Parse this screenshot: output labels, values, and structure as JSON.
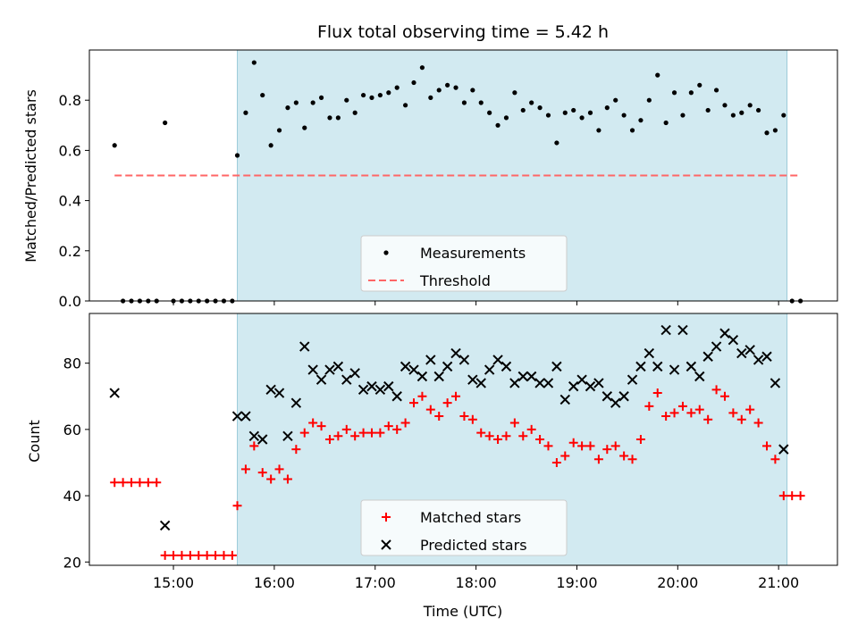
{
  "chart_data": [
    {
      "type": "scatter",
      "title": "Flux total observing time = 5.42 h",
      "xlabel": "",
      "ylabel": "Matched/Predicted stars",
      "ylim": [
        0,
        1.0
      ],
      "yticks": [
        0.0,
        0.2,
        0.4,
        0.6,
        0.8
      ],
      "ytick_labels": [
        "0.0",
        "0.2",
        "0.4",
        "0.6",
        "0.8"
      ],
      "xlim": [
        "14:10",
        "21:35"
      ],
      "xticks": [
        "15:00",
        "16:00",
        "17:00",
        "18:00",
        "19:00",
        "20:00",
        "21:00"
      ],
      "shaded_span": [
        "15:38",
        "21:05"
      ],
      "shade_color": "#add8e6",
      "grid": false,
      "legend_placement": "lower center",
      "series": [
        {
          "name": "Measurements",
          "marker": "dot",
          "color": "#000000",
          "x": [
            "14:25",
            "14:30",
            "14:35",
            "14:40",
            "14:45",
            "14:50",
            "14:55",
            "15:00",
            "15:05",
            "15:10",
            "15:15",
            "15:20",
            "15:25",
            "15:30",
            "15:35",
            "15:38",
            "15:43",
            "15:48",
            "15:53",
            "15:58",
            "16:03",
            "16:08",
            "16:13",
            "16:18",
            "16:23",
            "16:28",
            "16:33",
            "16:38",
            "16:43",
            "16:48",
            "16:53",
            "16:58",
            "17:03",
            "17:08",
            "17:13",
            "17:18",
            "17:23",
            "17:28",
            "17:33",
            "17:38",
            "17:43",
            "17:48",
            "17:53",
            "17:58",
            "18:03",
            "18:08",
            "18:13",
            "18:18",
            "18:23",
            "18:28",
            "18:33",
            "18:38",
            "18:43",
            "18:48",
            "18:53",
            "18:58",
            "19:03",
            "19:08",
            "19:13",
            "19:18",
            "19:23",
            "19:28",
            "19:33",
            "19:38",
            "19:43",
            "19:48",
            "19:53",
            "19:58",
            "20:03",
            "20:08",
            "20:13",
            "20:18",
            "20:23",
            "20:28",
            "20:33",
            "20:38",
            "20:43",
            "20:48",
            "20:53",
            "20:58",
            "21:03",
            "21:08",
            "21:13"
          ],
          "y": [
            0.62,
            0.0,
            0.0,
            0.0,
            0.0,
            0.0,
            0.71,
            0.0,
            0.0,
            0.0,
            0.0,
            0.0,
            0.0,
            0.0,
            0.0,
            0.58,
            0.75,
            0.95,
            0.82,
            0.62,
            0.68,
            0.77,
            0.79,
            0.69,
            0.79,
            0.81,
            0.73,
            0.73,
            0.8,
            0.75,
            0.82,
            0.81,
            0.82,
            0.83,
            0.85,
            0.78,
            0.87,
            0.93,
            0.81,
            0.84,
            0.86,
            0.85,
            0.79,
            0.84,
            0.79,
            0.75,
            0.7,
            0.73,
            0.83,
            0.76,
            0.79,
            0.77,
            0.74,
            0.63,
            0.75,
            0.76,
            0.73,
            0.75,
            0.68,
            0.77,
            0.8,
            0.74,
            0.68,
            0.72,
            0.8,
            0.9,
            0.71,
            0.83,
            0.74,
            0.83,
            0.86,
            0.76,
            0.84,
            0.78,
            0.74,
            0.75,
            0.78,
            0.76,
            0.67,
            0.68,
            0.74,
            0.0,
            0.0
          ]
        },
        {
          "name": "Threshold",
          "line": "dashed",
          "color": "#ff6666",
          "x": [
            "14:25",
            "21:13"
          ],
          "y": [
            0.5,
            0.5
          ]
        }
      ]
    },
    {
      "type": "scatter",
      "title": "",
      "xlabel": "Time (UTC)",
      "ylabel": "Count",
      "ylim": [
        19,
        95
      ],
      "yticks": [
        20,
        40,
        60,
        80
      ],
      "ytick_labels": [
        "20",
        "40",
        "60",
        "80"
      ],
      "xlim": [
        "14:10",
        "21:35"
      ],
      "xticks": [
        "15:00",
        "16:00",
        "17:00",
        "18:00",
        "19:00",
        "20:00",
        "21:00"
      ],
      "xtick_labels": [
        "15:00",
        "16:00",
        "17:00",
        "18:00",
        "19:00",
        "20:00",
        "21:00"
      ],
      "shaded_span": [
        "15:38",
        "21:05"
      ],
      "shade_color": "#add8e6",
      "grid": false,
      "legend_placement": "lower center",
      "series": [
        {
          "name": "Matched stars",
          "marker": "plus",
          "color": "#ff0000",
          "x": [
            "14:25",
            "14:30",
            "14:35",
            "14:40",
            "14:45",
            "14:50",
            "14:55",
            "15:00",
            "15:05",
            "15:10",
            "15:15",
            "15:20",
            "15:25",
            "15:30",
            "15:35",
            "15:38",
            "15:43",
            "15:48",
            "15:53",
            "15:58",
            "16:03",
            "16:08",
            "16:13",
            "16:18",
            "16:23",
            "16:28",
            "16:33",
            "16:38",
            "16:43",
            "16:48",
            "16:53",
            "16:58",
            "17:03",
            "17:08",
            "17:13",
            "17:18",
            "17:23",
            "17:28",
            "17:33",
            "17:38",
            "17:43",
            "17:48",
            "17:53",
            "17:58",
            "18:03",
            "18:08",
            "18:13",
            "18:18",
            "18:23",
            "18:28",
            "18:33",
            "18:38",
            "18:43",
            "18:48",
            "18:53",
            "18:58",
            "19:03",
            "19:08",
            "19:13",
            "19:18",
            "19:23",
            "19:28",
            "19:33",
            "19:38",
            "19:43",
            "19:48",
            "19:53",
            "19:58",
            "20:03",
            "20:08",
            "20:13",
            "20:18",
            "20:23",
            "20:28",
            "20:33",
            "20:38",
            "20:43",
            "20:48",
            "20:53",
            "20:58",
            "21:03",
            "21:08",
            "21:13"
          ],
          "y": [
            44,
            44,
            44,
            44,
            44,
            44,
            22,
            22,
            22,
            22,
            22,
            22,
            22,
            22,
            22,
            37,
            48,
            55,
            47,
            45,
            48,
            45,
            54,
            59,
            62,
            61,
            57,
            58,
            60,
            58,
            59,
            59,
            59,
            61,
            60,
            62,
            68,
            70,
            66,
            64,
            68,
            70,
            64,
            63,
            59,
            58,
            57,
            58,
            62,
            58,
            60,
            57,
            55,
            50,
            52,
            56,
            55,
            55,
            51,
            54,
            55,
            52,
            51,
            57,
            67,
            71,
            64,
            65,
            67,
            65,
            66,
            63,
            72,
            70,
            65,
            63,
            66,
            62,
            55,
            51,
            40,
            40,
            40
          ]
        },
        {
          "name": "Predicted stars",
          "marker": "x",
          "color": "#000000",
          "x": [
            "14:25",
            "14:55",
            "15:38",
            "15:43",
            "15:48",
            "15:53",
            "15:58",
            "16:03",
            "16:08",
            "16:13",
            "16:18",
            "16:23",
            "16:28",
            "16:33",
            "16:38",
            "16:43",
            "16:48",
            "16:53",
            "16:58",
            "17:03",
            "17:08",
            "17:13",
            "17:18",
            "17:23",
            "17:28",
            "17:33",
            "17:38",
            "17:43",
            "17:48",
            "17:53",
            "17:58",
            "18:03",
            "18:08",
            "18:13",
            "18:18",
            "18:23",
            "18:28",
            "18:33",
            "18:38",
            "18:43",
            "18:48",
            "18:53",
            "18:58",
            "19:03",
            "19:08",
            "19:13",
            "19:18",
            "19:23",
            "19:28",
            "19:33",
            "19:38",
            "19:43",
            "19:48",
            "19:53",
            "19:58",
            "20:03",
            "20:08",
            "20:13",
            "20:18",
            "20:23",
            "20:28",
            "20:33",
            "20:38",
            "20:43",
            "20:48",
            "20:53",
            "20:58",
            "21:03"
          ],
          "y": [
            71,
            31,
            64,
            64,
            58,
            57,
            72,
            71,
            58,
            68,
            85,
            78,
            75,
            78,
            79,
            75,
            77,
            72,
            73,
            72,
            73,
            70,
            79,
            78,
            76,
            81,
            76,
            79,
            83,
            81,
            75,
            74,
            78,
            81,
            79,
            74,
            76,
            76,
            74,
            74,
            79,
            69,
            73,
            75,
            73,
            74,
            70,
            68,
            70,
            75,
            79,
            83,
            79,
            90,
            78,
            90,
            79,
            76,
            82,
            85,
            89,
            87,
            83,
            84,
            81,
            82,
            74,
            54
          ]
        }
      ]
    }
  ]
}
